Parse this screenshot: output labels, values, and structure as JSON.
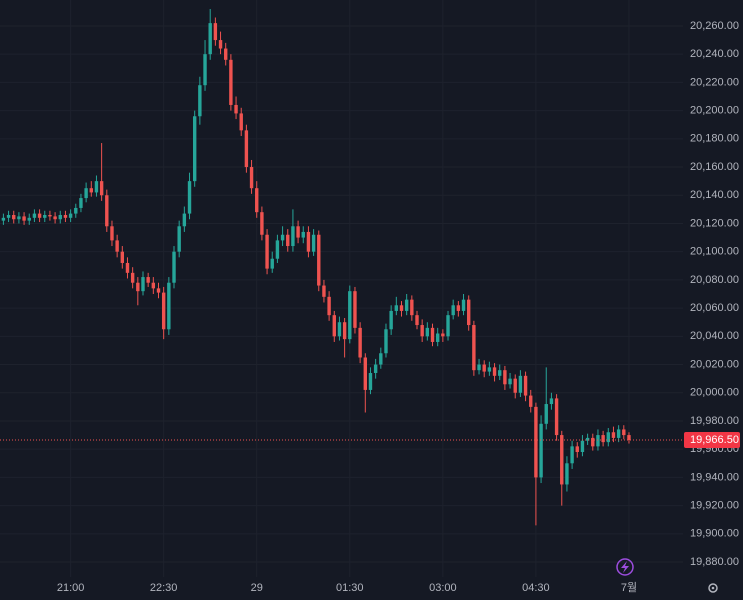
{
  "chart_data": {
    "type": "candlestick",
    "categories": [
      null,
      null,
      null,
      null,
      null,
      null,
      null,
      null,
      null,
      null,
      null,
      null,
      null,
      "21:00",
      null,
      null,
      null,
      null,
      null,
      null,
      null,
      null,
      null,
      null,
      null,
      null,
      null,
      null,
      null,
      null,
      null,
      "22:30",
      null,
      null,
      null,
      null,
      null,
      null,
      null,
      null,
      null,
      null,
      null,
      null,
      null,
      null,
      null,
      null,
      null,
      "29",
      null,
      null,
      null,
      null,
      null,
      null,
      null,
      null,
      null,
      null,
      null,
      null,
      null,
      null,
      null,
      null,
      null,
      "01:30",
      null,
      null,
      null,
      null,
      null,
      null,
      null,
      null,
      null,
      null,
      null,
      null,
      null,
      null,
      null,
      null,
      null,
      "03:00",
      null,
      null,
      null,
      null,
      null,
      null,
      null,
      null,
      null,
      null,
      null,
      null,
      null,
      null,
      null,
      null,
      null,
      "04:30",
      null,
      null,
      null,
      null,
      null,
      null,
      null,
      null,
      null,
      null,
      null,
      null,
      null,
      null,
      null,
      null,
      null,
      "7월"
    ],
    "open": [
      20122,
      20124,
      20126,
      20123,
      20125,
      20122,
      20124,
      20127,
      20124,
      20126,
      20125,
      20123,
      20126,
      20124,
      20127,
      20131,
      20138,
      20145,
      20142,
      20150,
      20140,
      20118,
      20108,
      20100,
      20092,
      20085,
      20078,
      20072,
      20082,
      20078,
      20074,
      20071,
      20045,
      20078,
      20100,
      20118,
      20127,
      20150,
      20196,
      20218,
      20240,
      20262,
      20250,
      20244,
      20236,
      20204,
      20198,
      20186,
      20160,
      20145,
      20128,
      20112,
      20088,
      20095,
      20108,
      20112,
      20104,
      20118,
      20110,
      20114,
      20100,
      20112,
      20076,
      20068,
      20055,
      20040,
      20050,
      20038,
      20072,
      20046,
      20025,
      20002,
      20014,
      20020,
      20028,
      20045,
      20058,
      20062,
      20058,
      20066,
      20055,
      20048,
      20040,
      20046,
      20036,
      20042,
      20040,
      20055,
      20062,
      20058,
      20066,
      20048,
      20016,
      20020,
      20015,
      20018,
      20012,
      20016,
      20006,
      20010,
      20000,
      20012,
      19998,
      19990,
      19940,
      19978,
      19992,
      19996,
      19970,
      19935,
      19950,
      19962,
      19958,
      19966,
      19968,
      19962,
      19970,
      19965,
      19972,
      19968,
      19974,
      19970
    ],
    "high": [
      20127,
      20129,
      20129,
      20128,
      20128,
      20127,
      20130,
      20130,
      20129,
      20129,
      20128,
      20129,
      20129,
      20130,
      20134,
      20141,
      20149,
      20150,
      20154,
      20177,
      20144,
      20122,
      20112,
      20104,
      20096,
      20089,
      20082,
      20086,
      20085,
      20082,
      20078,
      20075,
      20082,
      20104,
      20122,
      20132,
      20156,
      20200,
      20224,
      20250,
      20272,
      20266,
      20256,
      20248,
      20240,
      20210,
      20202,
      20190,
      20165,
      20150,
      20132,
      20116,
      20100,
      20112,
      20118,
      20116,
      20130,
      20122,
      20118,
      20118,
      20116,
      20115,
      20080,
      20072,
      20058,
      20054,
      20053,
      20076,
      20075,
      20050,
      20028,
      20018,
      20024,
      20032,
      20049,
      20062,
      20068,
      20065,
      20070,
      20069,
      20058,
      20052,
      20050,
      20049,
      20046,
      20045,
      20058,
      20066,
      20065,
      20070,
      20069,
      20051,
      20024,
      20023,
      20022,
      20021,
      20020,
      20019,
      20014,
      20013,
      20016,
      20015,
      20002,
      19993,
      19984,
      20018,
      20000,
      19999,
      19973,
      19955,
      19966,
      19965,
      19970,
      19971,
      19971,
      19974,
      19973,
      19975,
      19976,
      19977,
      19977,
      19972
    ],
    "low": [
      20119,
      20121,
      20120,
      20120,
      20119,
      20119,
      20121,
      20121,
      20121,
      20122,
      20120,
      20120,
      20121,
      20121,
      20124,
      20128,
      20135,
      20139,
      20139,
      20136,
      20114,
      20104,
      20096,
      20088,
      20081,
      20074,
      20062,
      20069,
      20075,
      20070,
      20067,
      20038,
      20041,
      20074,
      20096,
      20114,
      20123,
      20146,
      20190,
      20214,
      20236,
      20246,
      20240,
      20232,
      20200,
      20194,
      20182,
      20156,
      20141,
      20124,
      20108,
      20084,
      20085,
      20092,
      20104,
      20100,
      20100,
      20106,
      20106,
      20096,
      20097,
      20072,
      20064,
      20051,
      20036,
      20037,
      20025,
      20035,
      20042,
      20021,
      19986,
      19999,
      20010,
      20017,
      20025,
      20041,
      20055,
      20054,
      20055,
      20051,
      20045,
      20036,
      20037,
      20033,
      20033,
      20036,
      20037,
      20052,
      20054,
      20055,
      20044,
      20012,
      20013,
      20011,
      20012,
      20008,
      20009,
      20002,
      20003,
      19996,
      19997,
      19994,
      19986,
      19906,
      19936,
      19974,
      19988,
      19966,
      19920,
      19930,
      19946,
      19954,
      19955,
      19963,
      19959,
      19959,
      19962,
      19962,
      19965,
      19965,
      19967,
      19964
    ],
    "close": [
      20124,
      20126,
      20123,
      20125,
      20122,
      20124,
      20127,
      20124,
      20126,
      20125,
      20123,
      20126,
      20124,
      20127,
      20131,
      20138,
      20145,
      20142,
      20150,
      20140,
      20118,
      20108,
      20100,
      20092,
      20085,
      20078,
      20072,
      20082,
      20078,
      20074,
      20071,
      20045,
      20078,
      20100,
      20118,
      20127,
      20150,
      20196,
      20218,
      20240,
      20262,
      20250,
      20244,
      20236,
      20204,
      20198,
      20186,
      20160,
      20145,
      20128,
      20112,
      20088,
      20095,
      20108,
      20112,
      20104,
      20118,
      20110,
      20114,
      20100,
      20112,
      20076,
      20068,
      20055,
      20040,
      20050,
      20038,
      20072,
      20046,
      20025,
      20002,
      20014,
      20020,
      20028,
      20045,
      20058,
      20062,
      20058,
      20066,
      20055,
      20048,
      20040,
      20046,
      20036,
      20042,
      20040,
      20055,
      20062,
      20058,
      20066,
      20048,
      20016,
      20020,
      20015,
      20018,
      20012,
      20016,
      20006,
      20010,
      20000,
      20012,
      19998,
      19990,
      19940,
      19978,
      19992,
      19996,
      19970,
      19935,
      19950,
      19962,
      19958,
      19966,
      19968,
      19962,
      19970,
      19965,
      19972,
      19968,
      19974,
      19970,
      19966.5
    ],
    "up_color": "#26a69a",
    "down_color": "#ef5350",
    "ylim": [
      19869.4,
      20278.4
    ],
    "yticks": [
      {
        "value": 19880,
        "label": "19,880.00"
      },
      {
        "value": 19900,
        "label": "19,900.00"
      },
      {
        "value": 19920,
        "label": "19,920.00"
      },
      {
        "value": 19940,
        "label": "19,940.00"
      },
      {
        "value": 19960,
        "label": "19,960.00"
      },
      {
        "value": 19980,
        "label": "19,980.00"
      },
      {
        "value": 20000,
        "label": "20,000.00"
      },
      {
        "value": 20020,
        "label": "20,020.00"
      },
      {
        "value": 20040,
        "label": "20,040.00"
      },
      {
        "value": 20060,
        "label": "20,060.00"
      },
      {
        "value": 20080,
        "label": "20,080.00"
      },
      {
        "value": 20100,
        "label": "20,100.00"
      },
      {
        "value": 20120,
        "label": "20,120.00"
      },
      {
        "value": 20140,
        "label": "20,140.00"
      },
      {
        "value": 20160,
        "label": "20,160.00"
      },
      {
        "value": 20180,
        "label": "20,180.00"
      },
      {
        "value": 20200,
        "label": "20,200.00"
      },
      {
        "value": 20220,
        "label": "20,220.00"
      },
      {
        "value": 20240,
        "label": "20,240.00"
      },
      {
        "value": 20260,
        "label": "20,260.00"
      }
    ],
    "grid": true,
    "last_price": {
      "value": 19966.5,
      "label": "19,966.50"
    }
  }
}
